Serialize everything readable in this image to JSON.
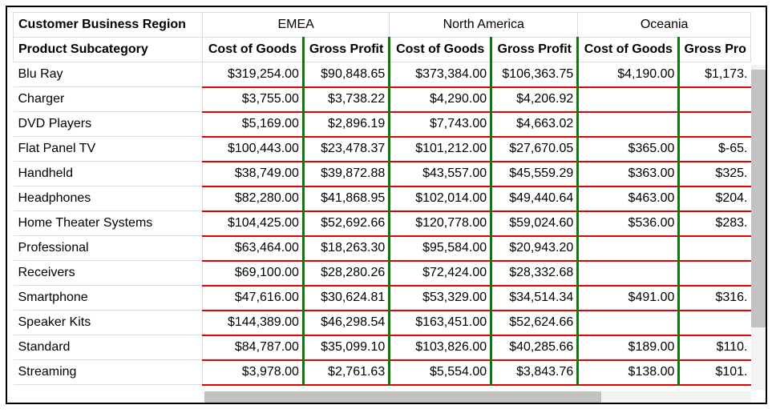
{
  "pivot": {
    "corner_top": "Customer Business Region",
    "corner_bottom": "Product Subcategory",
    "regions": [
      "EMEA",
      "North America",
      "Oceania"
    ],
    "measures": [
      "Cost of Goods",
      "Gross Profit",
      "Cost of Goods",
      "Gross Profit",
      "Cost of Goods",
      "Gross Pro"
    ],
    "rows": [
      {
        "label": "Blu Ray",
        "values": [
          "$319,254.00",
          "$90,848.65",
          "$373,384.00",
          "$106,363.75",
          "$4,190.00",
          "$1,173."
        ]
      },
      {
        "label": "Charger",
        "values": [
          "$3,755.00",
          "$3,738.22",
          "$4,290.00",
          "$4,206.92",
          "",
          ""
        ]
      },
      {
        "label": "DVD Players",
        "values": [
          "$5,169.00",
          "$2,896.19",
          "$7,743.00",
          "$4,663.02",
          "",
          ""
        ]
      },
      {
        "label": "Flat Panel TV",
        "values": [
          "$100,443.00",
          "$23,478.37",
          "$101,212.00",
          "$27,670.05",
          "$365.00",
          "$-65."
        ]
      },
      {
        "label": "Handheld",
        "values": [
          "$38,749.00",
          "$39,872.88",
          "$43,557.00",
          "$45,559.29",
          "$363.00",
          "$325."
        ]
      },
      {
        "label": "Headphones",
        "values": [
          "$82,280.00",
          "$41,868.95",
          "$102,014.00",
          "$49,440.64",
          "$463.00",
          "$204."
        ]
      },
      {
        "label": "Home Theater Systems",
        "values": [
          "$104,425.00",
          "$52,692.66",
          "$120,778.00",
          "$59,024.60",
          "$536.00",
          "$283."
        ]
      },
      {
        "label": "Professional",
        "values": [
          "$63,464.00",
          "$18,263.30",
          "$95,584.00",
          "$20,943.20",
          "",
          ""
        ]
      },
      {
        "label": "Receivers",
        "values": [
          "$69,100.00",
          "$28,280.26",
          "$72,424.00",
          "$28,332.68",
          "",
          ""
        ]
      },
      {
        "label": "Smartphone",
        "values": [
          "$47,616.00",
          "$30,624.81",
          "$53,329.00",
          "$34,514.34",
          "$491.00",
          "$316."
        ]
      },
      {
        "label": "Speaker Kits",
        "values": [
          "$144,389.00",
          "$46,298.54",
          "$163,451.00",
          "$52,624.66",
          "",
          ""
        ]
      },
      {
        "label": "Standard",
        "values": [
          "$84,787.00",
          "$35,099.10",
          "$103,826.00",
          "$40,285.66",
          "$189.00",
          "$110."
        ]
      },
      {
        "label": "Streaming",
        "values": [
          "$3,978.00",
          "$2,761.63",
          "$5,554.00",
          "$3,843.76",
          "$138.00",
          "$101."
        ]
      }
    ]
  },
  "colors": {
    "row_separator": "#e00000",
    "measure_separator": "#0a7a0a",
    "scrollbar_thumb": "#c2c2c2"
  }
}
